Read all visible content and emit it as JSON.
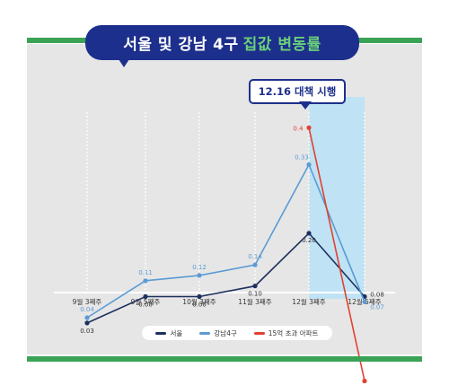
{
  "header": {
    "title_main": "서울 및 강남 4구",
    "title_highlight": "집값 변동률"
  },
  "callout": {
    "text": "12.16 대책 시행"
  },
  "colors": {
    "seoul": "#1d2f5e",
    "gangnam": "#5b9bd5",
    "over15": "#e2412f",
    "title_bg": "#1d2f8c",
    "highlight": "#6ad07a",
    "band": "#bfe3f4"
  },
  "chart_data": {
    "type": "line",
    "categories": [
      "9월 3째주",
      "9월 5째주",
      "10월 3째주",
      "11월 3째주",
      "12월 3째주",
      "12월 5째주"
    ],
    "series": [
      {
        "name": "서울",
        "values": [
          0.03,
          0.08,
          0.08,
          0.1,
          0.2,
          0.08
        ],
        "labels": [
          "0.03",
          "0.08",
          "0.08",
          "0.10",
          "0.20",
          "0.08"
        ]
      },
      {
        "name": "강남4구",
        "values": [
          0.04,
          0.11,
          0.12,
          0.14,
          0.33,
          0.07
        ],
        "labels": [
          "0.04",
          "0.11",
          "0.12",
          "0.14",
          "0.33",
          "0.07"
        ]
      },
      {
        "name": "15억 초과 아파트",
        "values": [
          null,
          null,
          null,
          null,
          0.4,
          -0.08
        ],
        "labels": [
          "",
          "",
          "",
          "",
          "0.4",
          "-0.08"
        ]
      }
    ],
    "ylim": [
      -0.08,
      0.4
    ],
    "grid": "vertical dashed",
    "legend": "bottom-center",
    "highlight_category": "12월 5째주"
  }
}
